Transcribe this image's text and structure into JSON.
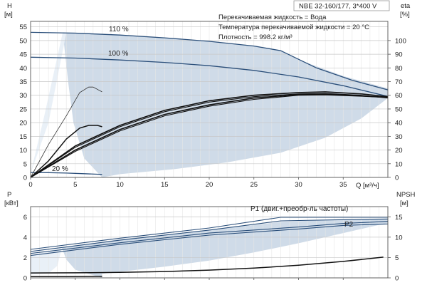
{
  "chart_data": [
    {
      "type": "line",
      "title": "NBE 32-160/177, 3*400 V",
      "info_lines": [
        "Перекачиваемая жидкость = Вода",
        "Температура перекачиваемой жидкости = 20 °C",
        "Плотность = 998.2 кг/м³"
      ],
      "x_axis": {
        "label": "Q [м³/ч]",
        "range": [
          0,
          40
        ],
        "ticks": [
          0,
          5,
          10,
          15,
          20,
          25,
          30,
          35
        ]
      },
      "y_axis_left": {
        "label": "H",
        "unit": "[м]",
        "range": [
          0,
          57
        ],
        "ticks": [
          0,
          5,
          10,
          15,
          20,
          25,
          30,
          35,
          40,
          45,
          50,
          55
        ]
      },
      "y_axis_right": {
        "label": "eta",
        "unit": "[%]",
        "range": [
          0,
          114
        ],
        "ticks": [
          0,
          10,
          20,
          30,
          40,
          50,
          60,
          70,
          80,
          90,
          100
        ]
      },
      "grid": true,
      "operating_area": {
        "upper": [
          [
            3.6,
            53
          ],
          [
            6,
            52.8
          ],
          [
            10,
            52
          ],
          [
            15,
            51
          ],
          [
            20,
            49.8
          ],
          [
            25,
            48
          ],
          [
            28,
            46.5
          ],
          [
            30,
            43
          ],
          [
            35,
            37
          ],
          [
            40,
            32.5
          ]
        ],
        "lower": [
          [
            40,
            29
          ],
          [
            37,
            21.5
          ],
          [
            33,
            14.5
          ],
          [
            28,
            9
          ],
          [
            22,
            5.5
          ],
          [
            16,
            3
          ],
          [
            10,
            1.2
          ],
          [
            8,
            0
          ]
        ],
        "left": [
          [
            8,
            0
          ],
          [
            6,
            7
          ],
          [
            4.8,
            20
          ],
          [
            4.2,
            35
          ],
          [
            3.6,
            53
          ]
        ]
      },
      "light_region": [
        [
          0,
          1.5
        ],
        [
          2,
          20
        ],
        [
          4,
          52.8
        ],
        [
          3.6,
          53
        ],
        [
          1.5,
          22
        ],
        [
          0,
          1.5
        ]
      ],
      "head_curves": [
        {
          "name": "110 %",
          "points": [
            [
              0,
              53
            ],
            [
              5,
              52.7
            ],
            [
              10,
              52
            ],
            [
              15,
              51
            ],
            [
              20,
              49.7
            ],
            [
              25,
              48
            ],
            [
              28,
              46.3
            ],
            [
              32,
              40
            ],
            [
              36,
              35.5
            ],
            [
              40,
              32
            ]
          ]
        },
        {
          "name": "100 %",
          "points": [
            [
              0,
              43.9
            ],
            [
              5,
              43.6
            ],
            [
              10,
              42.9
            ],
            [
              15,
              42
            ],
            [
              20,
              40.8
            ],
            [
              25,
              39.1
            ],
            [
              30,
              36.7
            ],
            [
              35,
              33.5
            ],
            [
              40,
              29.6
            ]
          ]
        },
        {
          "name": "20 %",
          "points": [
            [
              0,
              1.8
            ],
            [
              2,
              1.75
            ],
            [
              4,
              1.6
            ],
            [
              6,
              1.35
            ],
            [
              8,
              1.1
            ]
          ]
        }
      ],
      "efficiency_curves": [
        {
          "points": [
            [
              0,
              0
            ],
            [
              5,
              23
            ],
            [
              10,
              38
            ],
            [
              15,
              49
            ],
            [
              20,
              56
            ],
            [
              25,
              60
            ],
            [
              30,
              62
            ],
            [
              33,
              62.5
            ],
            [
              37,
              61
            ],
            [
              40,
              59
            ]
          ]
        },
        {
          "points": [
            [
              0,
              0
            ],
            [
              5,
              22
            ],
            [
              10,
              37
            ],
            [
              15,
              48
            ],
            [
              20,
              55
            ],
            [
              25,
              59
            ],
            [
              30,
              61
            ],
            [
              33,
              61.3
            ],
            [
              37,
              60
            ],
            [
              40,
              58
            ]
          ]
        },
        {
          "points": [
            [
              0,
              0
            ],
            [
              5,
              20
            ],
            [
              10,
              35
            ],
            [
              15,
              46
            ],
            [
              20,
              53
            ],
            [
              25,
              58
            ],
            [
              30,
              60.5
            ],
            [
              33,
              60.8
            ],
            [
              37,
              59.6
            ],
            [
              40,
              58.5
            ]
          ]
        },
        {
          "points": [
            [
              0,
              0
            ],
            [
              5,
              19
            ],
            [
              10,
              34
            ],
            [
              15,
              45
            ],
            [
              20,
              52
            ],
            [
              25,
              57
            ],
            [
              30,
              60
            ],
            [
              33,
              60.3
            ],
            [
              37,
              59.3
            ],
            [
              40,
              58.3
            ]
          ]
        },
        {
          "points": [
            [
              0,
              0
            ],
            [
              2,
              24
            ],
            [
              4,
              45
            ],
            [
              5.5,
              62
            ],
            [
              6.5,
              66
            ],
            [
              7,
              66
            ],
            [
              8,
              62.5
            ]
          ]
        },
        {
          "points": [
            [
              0,
              0
            ],
            [
              2,
              12
            ],
            [
              4,
              28
            ],
            [
              5.5,
              36
            ],
            [
              6.5,
              38
            ],
            [
              7.5,
              38
            ],
            [
              8,
              37
            ]
          ]
        }
      ]
    },
    {
      "type": "line",
      "x_axis": {
        "range": [
          0,
          40
        ]
      },
      "y_axis_left": {
        "label": "P",
        "unit": "[кВт]",
        "range": [
          0,
          7
        ],
        "ticks": [
          0,
          2,
          4,
          6
        ]
      },
      "y_axis_right": {
        "label": "NPSH",
        "unit": "[м]",
        "range": [
          0,
          17.5
        ],
        "ticks": [
          0,
          5,
          10,
          15
        ]
      },
      "grid": true,
      "operating_area": {
        "upper": [
          [
            3.5,
            2.95
          ],
          [
            10,
            3.8
          ],
          [
            20,
            4.7
          ],
          [
            28,
            5.5
          ],
          [
            35,
            5.75
          ],
          [
            40,
            5.85
          ]
        ],
        "lower": [
          [
            40,
            5.4
          ],
          [
            35,
            4.4
          ],
          [
            30,
            3.4
          ],
          [
            25,
            2.5
          ],
          [
            20,
            1.7
          ],
          [
            15,
            1.1
          ],
          [
            10,
            0.6
          ],
          [
            8,
            0.4
          ],
          [
            8,
            0
          ]
        ],
        "left": [
          [
            8,
            0
          ],
          [
            5,
            0.8
          ],
          [
            4,
            1.8
          ],
          [
            3.5,
            2.95
          ]
        ]
      },
      "light_region": [
        [
          0,
          0.35
        ],
        [
          0,
          2.2
        ],
        [
          3.5,
          2.95
        ],
        [
          3,
          1.2
        ],
        [
          2,
          0.45
        ],
        [
          0,
          0.35
        ]
      ],
      "series": [
        {
          "name": "P1 (двиг.+преобр-ль частоты)",
          "points": [
            [
              0,
              2.8
            ],
            [
              10,
              3.9
            ],
            [
              20,
              4.9
            ],
            [
              28,
              5.95
            ],
            [
              35,
              5.95
            ],
            [
              40,
              5.95
            ]
          ]
        },
        {
          "points": [
            [
              0,
              2.6
            ],
            [
              10,
              3.7
            ],
            [
              20,
              4.7
            ],
            [
              28,
              5.6
            ],
            [
              35,
              5.72
            ],
            [
              40,
              5.78
            ]
          ]
        },
        {
          "name": "P2",
          "points": [
            [
              0,
              2.4
            ],
            [
              10,
              3.45
            ],
            [
              20,
              4.4
            ],
            [
              30,
              5.0
            ],
            [
              35,
              5.35
            ],
            [
              40,
              5.55
            ]
          ]
        },
        {
          "points": [
            [
              0,
              2.2
            ],
            [
              10,
              3.3
            ],
            [
              20,
              4.2
            ],
            [
              30,
              4.8
            ],
            [
              35,
              5.15
            ],
            [
              40,
              5.3
            ]
          ]
        },
        {
          "points": [
            [
              0,
              0.12
            ],
            [
              4,
              0.12
            ],
            [
              8,
              0.15
            ]
          ]
        }
      ],
      "npsh_curve": {
        "points": [
          [
            0,
            1.2
          ],
          [
            5,
            1.25
          ],
          [
            10,
            1.35
          ],
          [
            15,
            1.55
          ],
          [
            20,
            1.9
          ],
          [
            25,
            2.4
          ],
          [
            30,
            3.1
          ],
          [
            35,
            4.05
          ],
          [
            39.5,
            5.1
          ]
        ]
      }
    }
  ]
}
